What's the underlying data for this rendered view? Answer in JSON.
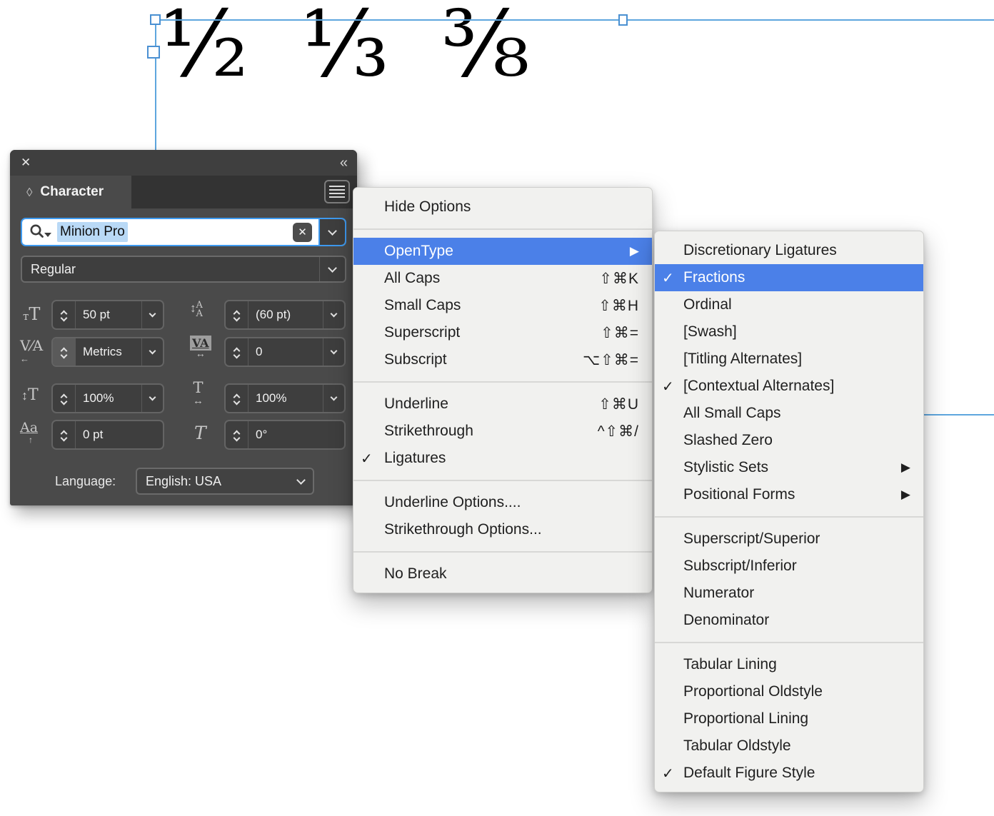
{
  "document": {
    "fractions_text": "½ ⅓ ⅜"
  },
  "glyphs": {
    "close": "✕",
    "collapse": "«",
    "tab_diamond": "◊",
    "check": "✓",
    "submenu_arrow": "▶",
    "clear": "✕",
    "leading_arrows": "↕AA",
    "font_size_icon": "тT",
    "kerning_icon": "V⁄A",
    "tracking_icon": "VA",
    "vscale_icon": "↕T",
    "hscale_icon": "T",
    "hscale_arrow": "↔",
    "tracking_arrow": "↔",
    "kerning_arrow": "←",
    "baseline_icon": "Aa",
    "baseline_arrow": "↑",
    "skew_icon": "T"
  },
  "colors": {
    "menu_highlight": "#4b80e8",
    "selection_blue": "#3e9af0",
    "frame_blue": "#5ea6de",
    "panel_bg": "#4a4a4a",
    "menu_bg": "#f1f1ef"
  },
  "character_panel": {
    "title": "Character",
    "font_search": {
      "value": "Minion Pro"
    },
    "style": {
      "value": "Regular"
    },
    "fields": {
      "font_size": {
        "value": "50 pt"
      },
      "leading": {
        "value": "(60 pt)"
      },
      "kerning": {
        "value": "Metrics"
      },
      "tracking": {
        "value": "0"
      },
      "vertical_scale": {
        "value": "100%"
      },
      "horizontal_scale": {
        "value": "100%"
      },
      "baseline_shift": {
        "value": "0 pt"
      },
      "skew": {
        "value": "0°"
      }
    },
    "language": {
      "label": "Language:",
      "value": "English: USA"
    }
  },
  "panel_menu": {
    "items": [
      {
        "label": "Hide Options"
      },
      {
        "type": "divider"
      },
      {
        "label": "OpenType",
        "highlighted": true,
        "submenu": true
      },
      {
        "label": "All Caps",
        "shortcut": "⇧⌘K"
      },
      {
        "label": "Small Caps",
        "shortcut": "⇧⌘H"
      },
      {
        "label": "Superscript",
        "shortcut": "⇧⌘="
      },
      {
        "label": "Subscript",
        "shortcut": "⌥⇧⌘="
      },
      {
        "type": "divider"
      },
      {
        "label": "Underline",
        "shortcut": "⇧⌘U"
      },
      {
        "label": "Strikethrough",
        "shortcut": "^⇧⌘/"
      },
      {
        "label": "Ligatures",
        "checked": true
      },
      {
        "type": "divider"
      },
      {
        "label": "Underline Options...."
      },
      {
        "label": "Strikethrough Options..."
      },
      {
        "type": "divider"
      },
      {
        "label": "No Break"
      }
    ]
  },
  "opentype_submenu": {
    "items": [
      {
        "label": "Discretionary Ligatures"
      },
      {
        "label": "Fractions",
        "checked": true,
        "highlighted": true
      },
      {
        "label": "Ordinal"
      },
      {
        "label": "[Swash]"
      },
      {
        "label": "[Titling Alternates]"
      },
      {
        "label": "[Contextual Alternates]",
        "checked": true
      },
      {
        "label": "All Small Caps"
      },
      {
        "label": "Slashed Zero"
      },
      {
        "label": "Stylistic Sets",
        "submenu": true
      },
      {
        "label": "Positional Forms",
        "submenu": true
      },
      {
        "type": "divider"
      },
      {
        "label": "Superscript/Superior"
      },
      {
        "label": "Subscript/Inferior"
      },
      {
        "label": "Numerator"
      },
      {
        "label": "Denominator"
      },
      {
        "type": "divider"
      },
      {
        "label": "Tabular Lining"
      },
      {
        "label": "Proportional Oldstyle"
      },
      {
        "label": "Proportional Lining"
      },
      {
        "label": "Tabular Oldstyle"
      },
      {
        "label": "Default Figure Style",
        "checked": true
      }
    ]
  }
}
